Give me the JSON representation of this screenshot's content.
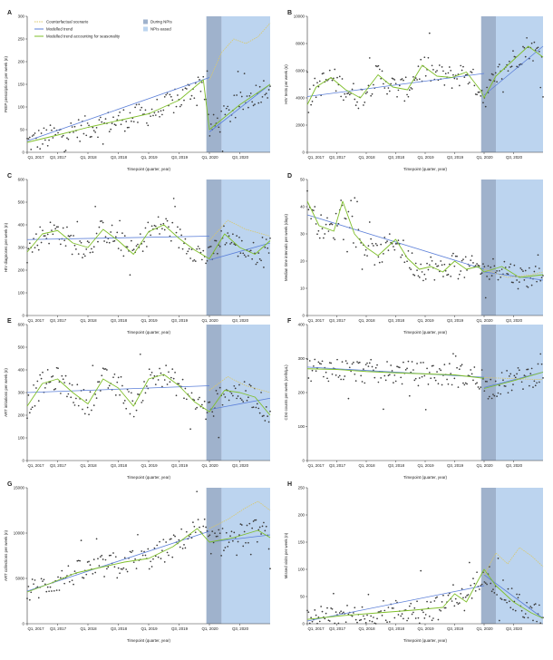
{
  "legend": {
    "counterfactual": "Counterfactual scenario",
    "modelled": "Modelled trend",
    "seasonal": "Modelled trend accounting for seasonality",
    "during": "During NPIs",
    "eased": "NPIs eased"
  },
  "colors": {
    "points": "#3a3a3a",
    "modelled": "#5b7fd9",
    "seasonal": "#7fbf2a",
    "counterfactual": "#d9c86a",
    "during": "#9fb2cc",
    "eased": "#bcd4ef"
  },
  "xlabel": "Timepoint (quarter, year)",
  "x_ticks": [
    "Q1, 2017",
    "Q3, 2017",
    "Q1, 2018",
    "Q3, 2018",
    "Q1, 2019",
    "Q3, 2019",
    "Q1, 2020",
    "Q3, 2020"
  ],
  "chart_data": [
    {
      "panel": "A",
      "type": "scatter",
      "ylabel": "PrEP prescriptions per week (n)",
      "ylim": [
        0,
        300
      ],
      "yticks": [
        0,
        50,
        100,
        150,
        200,
        250,
        300
      ],
      "modelled": [
        [
          0,
          25
        ],
        [
          3.0,
          165
        ],
        [
          3.0,
          45
        ],
        [
          4.0,
          150
        ]
      ],
      "seasonal": [
        [
          0,
          22
        ],
        [
          0.5,
          38
        ],
        [
          1.0,
          55
        ],
        [
          1.5,
          70
        ],
        [
          2.0,
          85
        ],
        [
          2.5,
          115
        ],
        [
          2.9,
          160
        ],
        [
          3.0,
          50
        ],
        [
          3.5,
          105
        ],
        [
          4.0,
          150
        ]
      ],
      "counterfactual": [
        [
          3.0,
          160
        ],
        [
          3.2,
          220
        ],
        [
          3.4,
          250
        ],
        [
          3.6,
          240
        ],
        [
          3.8,
          255
        ],
        [
          4.0,
          285
        ]
      ]
    },
    {
      "panel": "B",
      "type": "scatter",
      "ylabel": "HIV tests per week (n)",
      "ylim": [
        0,
        10000
      ],
      "yticks": [
        0,
        2000,
        4000,
        6000,
        8000,
        10000
      ],
      "modelled": [
        [
          0,
          4100
        ],
        [
          3.0,
          5800
        ],
        [
          3.0,
          4200
        ],
        [
          4.0,
          7800
        ]
      ],
      "seasonal": [
        [
          0,
          3500
        ],
        [
          0.15,
          4800
        ],
        [
          0.4,
          5500
        ],
        [
          0.65,
          4600
        ],
        [
          0.9,
          4000
        ],
        [
          1.2,
          5700
        ],
        [
          1.45,
          4800
        ],
        [
          1.7,
          4600
        ],
        [
          1.95,
          6400
        ],
        [
          2.2,
          5600
        ],
        [
          2.45,
          5500
        ],
        [
          2.7,
          5900
        ],
        [
          2.95,
          4500
        ],
        [
          3.0,
          4000
        ],
        [
          3.2,
          5600
        ],
        [
          3.5,
          6800
        ],
        [
          3.75,
          7800
        ],
        [
          4.0,
          7000
        ]
      ],
      "counterfactual": []
    },
    {
      "panel": "C",
      "type": "scatter",
      "ylabel": "HIV diagnoses per week (n)",
      "ylim": [
        0,
        600
      ],
      "yticks": [
        0,
        100,
        200,
        300,
        400,
        500,
        600
      ],
      "modelled": [
        [
          0,
          335
        ],
        [
          3.0,
          350
        ],
        [
          3.0,
          245
        ],
        [
          4.0,
          320
        ]
      ],
      "seasonal": [
        [
          0,
          280
        ],
        [
          0.25,
          360
        ],
        [
          0.5,
          375
        ],
        [
          0.75,
          320
        ],
        [
          1.0,
          300
        ],
        [
          1.25,
          380
        ],
        [
          1.5,
          330
        ],
        [
          1.75,
          270
        ],
        [
          2.0,
          370
        ],
        [
          2.25,
          400
        ],
        [
          2.5,
          340
        ],
        [
          2.75,
          290
        ],
        [
          3.0,
          250
        ],
        [
          3.25,
          360
        ],
        [
          3.5,
          300
        ],
        [
          3.75,
          270
        ],
        [
          4.0,
          330
        ]
      ],
      "counterfactual": [
        [
          3.0,
          330
        ],
        [
          3.3,
          420
        ],
        [
          3.6,
          380
        ],
        [
          4.0,
          350
        ]
      ]
    },
    {
      "panel": "D",
      "type": "scatter",
      "ylabel": "Median time intervals per week (days)",
      "ylim": [
        0,
        50
      ],
      "yticks": [
        0,
        10,
        20,
        30,
        40,
        50
      ],
      "modelled": [
        [
          0,
          37
        ],
        [
          3.0,
          17
        ],
        [
          3.0,
          16
        ],
        [
          4.0,
          13
        ]
      ],
      "seasonal": [
        [
          0,
          42
        ],
        [
          0.2,
          33
        ],
        [
          0.45,
          31
        ],
        [
          0.6,
          42
        ],
        [
          0.8,
          30
        ],
        [
          1.0,
          25
        ],
        [
          1.2,
          22
        ],
        [
          1.5,
          28
        ],
        [
          1.7,
          21
        ],
        [
          1.9,
          17
        ],
        [
          2.1,
          18
        ],
        [
          2.3,
          16
        ],
        [
          2.5,
          20
        ],
        [
          2.7,
          17
        ],
        [
          2.9,
          18
        ],
        [
          3.0,
          16
        ],
        [
          3.3,
          18
        ],
        [
          3.6,
          14
        ],
        [
          4.0,
          15
        ]
      ],
      "counterfactual": [
        [
          3.0,
          17
        ],
        [
          3.4,
          14
        ],
        [
          3.8,
          15
        ],
        [
          4.0,
          16
        ]
      ]
    },
    {
      "panel": "E",
      "type": "scatter",
      "ylabel": "ART initiations per week (n)",
      "ylim": [
        0,
        600
      ],
      "yticks": [
        0,
        100,
        200,
        300,
        400,
        500,
        600
      ],
      "modelled": [
        [
          0,
          300
        ],
        [
          3.0,
          330
        ],
        [
          3.0,
          225
        ],
        [
          4.0,
          275
        ]
      ],
      "seasonal": [
        [
          0,
          240
        ],
        [
          0.25,
          340
        ],
        [
          0.5,
          360
        ],
        [
          0.75,
          300
        ],
        [
          1.0,
          250
        ],
        [
          1.25,
          360
        ],
        [
          1.5,
          320
        ],
        [
          1.75,
          240
        ],
        [
          2.0,
          360
        ],
        [
          2.25,
          380
        ],
        [
          2.5,
          330
        ],
        [
          2.75,
          260
        ],
        [
          3.0,
          215
        ],
        [
          3.25,
          310
        ],
        [
          3.5,
          300
        ],
        [
          3.75,
          280
        ],
        [
          4.0,
          200
        ]
      ],
      "counterfactual": [
        [
          3.0,
          310
        ],
        [
          3.3,
          370
        ],
        [
          3.6,
          330
        ],
        [
          4.0,
          300
        ]
      ]
    },
    {
      "panel": "F",
      "type": "scatter",
      "ylabel": "CD4 counts per week (cells/μL)",
      "ylim": [
        0,
        400
      ],
      "yticks": [
        0,
        100,
        200,
        300,
        400
      ],
      "modelled": [
        [
          0,
          275
        ],
        [
          3.0,
          245
        ],
        [
          3.0,
          215
        ],
        [
          4.0,
          260
        ]
      ],
      "seasonal": [
        [
          0,
          270
        ],
        [
          0.5,
          268
        ],
        [
          1.0,
          262
        ],
        [
          1.5,
          258
        ],
        [
          2.0,
          255
        ],
        [
          2.5,
          252
        ],
        [
          3.0,
          242
        ],
        [
          3.0,
          212
        ],
        [
          3.5,
          235
        ],
        [
          4.0,
          260
        ]
      ],
      "counterfactual": [
        [
          3.0,
          244
        ],
        [
          4.0,
          238
        ]
      ]
    },
    {
      "panel": "G",
      "type": "scatter",
      "ylabel": "ART collections per week (n)",
      "ylim": [
        0,
        15000
      ],
      "yticks": [
        0,
        5000,
        10000,
        15000
      ],
      "modelled": [
        [
          0,
          3600
        ],
        [
          3.0,
          10200
        ],
        [
          3.0,
          9000
        ],
        [
          4.0,
          9800
        ]
      ],
      "seasonal": [
        [
          0,
          3500
        ],
        [
          0.4,
          4500
        ],
        [
          0.8,
          5600
        ],
        [
          1.2,
          6200
        ],
        [
          1.6,
          6800
        ],
        [
          2.0,
          7200
        ],
        [
          2.4,
          8500
        ],
        [
          2.8,
          10500
        ],
        [
          3.0,
          9000
        ],
        [
          3.4,
          9500
        ],
        [
          3.8,
          10300
        ],
        [
          4.0,
          9500
        ]
      ],
      "counterfactual": [
        [
          3.0,
          10500
        ],
        [
          3.3,
          11500
        ],
        [
          3.6,
          12800
        ],
        [
          3.8,
          13500
        ],
        [
          4.0,
          12500
        ]
      ]
    },
    {
      "panel": "H",
      "type": "scatter",
      "ylabel": "Missed visits per week (n)",
      "ylim": [
        0,
        250
      ],
      "yticks": [
        0,
        50,
        100,
        150,
        200,
        250
      ],
      "modelled": [
        [
          0,
          5
        ],
        [
          3.0,
          70
        ],
        [
          3.0,
          90
        ],
        [
          4.0,
          10
        ]
      ],
      "seasonal": [
        [
          0,
          8
        ],
        [
          0.6,
          15
        ],
        [
          1.2,
          20
        ],
        [
          1.8,
          25
        ],
        [
          2.3,
          30
        ],
        [
          2.5,
          55
        ],
        [
          2.7,
          40
        ],
        [
          2.9,
          80
        ],
        [
          3.0,
          100
        ],
        [
          3.2,
          70
        ],
        [
          3.5,
          40
        ],
        [
          3.8,
          20
        ],
        [
          4.0,
          10
        ]
      ],
      "counterfactual": [
        [
          3.0,
          90
        ],
        [
          3.2,
          130
        ],
        [
          3.4,
          110
        ],
        [
          3.6,
          140
        ],
        [
          3.8,
          125
        ],
        [
          4.0,
          105
        ]
      ]
    }
  ]
}
